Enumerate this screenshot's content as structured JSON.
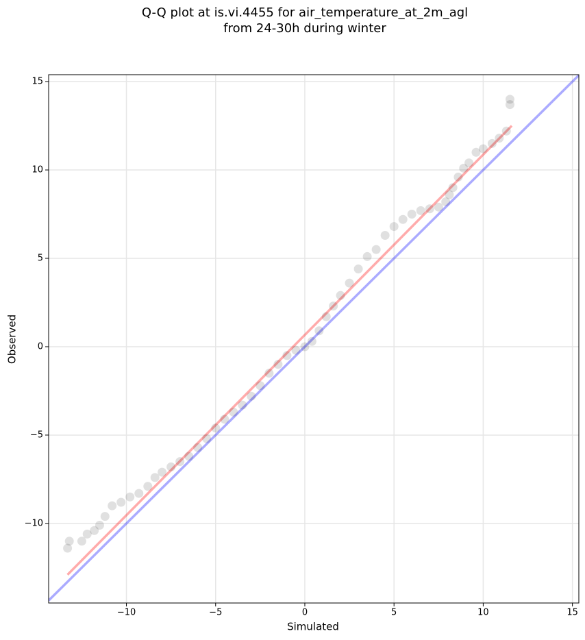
{
  "chart_data": {
    "type": "scatter",
    "title": [
      "Q-Q plot at is.vi.4455 for air_temperature_at_2m_agl",
      "from 24-30h during winter"
    ],
    "x_label": "Simulated",
    "y_label": "Observed",
    "xlim": [
      -14.36,
      15.36
    ],
    "ylim": [
      -14.5,
      15.39
    ],
    "xticks": [
      {
        "value": -10,
        "label": "−10"
      },
      {
        "value": -5,
        "label": "−5"
      },
      0,
      5,
      10,
      15
    ],
    "yticks": [
      {
        "value": -10,
        "label": "−10"
      },
      {
        "value": -5,
        "label": "−5"
      },
      0,
      5,
      10,
      15
    ],
    "grid": true,
    "color": "#000000",
    "x": [
      -13.3,
      -13.2,
      -12.5,
      -12.2,
      -11.8,
      -11.5,
      -11.2,
      -10.8,
      -10.3,
      -9.8,
      -9.3,
      -8.8,
      -8.4,
      -8,
      -7.5,
      -7,
      -6.5,
      -6,
      -5.5,
      -5,
      -4.5,
      -4,
      -3.5,
      -3,
      -2.5,
      -2,
      -1.5,
      -1,
      -0.5,
      0,
      0.4,
      0.8,
      1.2,
      1.6,
      2,
      2.5,
      3,
      3.5,
      4,
      4.5,
      5,
      5.5,
      6,
      6.5,
      7,
      7.5,
      7.9,
      8.1,
      8.3,
      8.6,
      8.9,
      9.2,
      9.6,
      10,
      10.5,
      10.9,
      11.3,
      11.5,
      11.5
    ],
    "values": [
      -11.4,
      -11.0,
      -11.0,
      -10.6,
      -10.4,
      -10.1,
      -9.6,
      -9.0,
      -8.8,
      -8.5,
      -8.3,
      -7.9,
      -7.4,
      -7.1,
      -6.8,
      -6.5,
      -6.2,
      -5.7,
      -5.2,
      -4.6,
      -4.1,
      -3.7,
      -3.3,
      -2.8,
      -2.2,
      -1.5,
      -1.0,
      -0.5,
      -0.2,
      0,
      0.3,
      0.9,
      1.7,
      2.3,
      2.9,
      3.6,
      4.4,
      5.1,
      5.5,
      6.3,
      6.8,
      7.2,
      7.5,
      7.7,
      7.8,
      7.9,
      8.2,
      8.6,
      9.0,
      9.6,
      10.1,
      10.4,
      11.0,
      11.2,
      11.5,
      11.8,
      12.2,
      13.7,
      14.0
    ],
    "reference_lines": [
      {
        "color": "#0000ff",
        "x": [
          -14.36,
          15.36
        ],
        "values": [
          -14.36,
          15.36
        ]
      },
      {
        "color": "#ff0000",
        "x": [
          -13.3,
          11.6
        ],
        "values": [
          -12.9,
          12.5
        ]
      }
    ]
  }
}
